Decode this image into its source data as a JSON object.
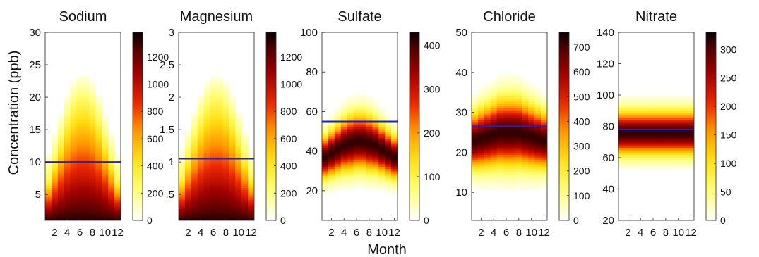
{
  "figure": {
    "ylabel": "Concentration (ppb)",
    "xlabel": "Month"
  },
  "chart_data": [
    {
      "type": "heatmap",
      "title": "Sodium",
      "x": [
        1,
        2,
        3,
        4,
        5,
        6,
        7,
        8,
        9,
        10,
        11,
        12
      ],
      "xticks": [
        2,
        4,
        6,
        8,
        10,
        12
      ],
      "ylim": [
        1,
        30
      ],
      "yticks": [
        5,
        10,
        15,
        20,
        25,
        30
      ],
      "ytick_labels": [
        "5",
        "10",
        "15",
        "20",
        "25",
        "30"
      ],
      "mean_line": 10,
      "density_model": "upper_bound_band",
      "band_bottom": 1,
      "band_top_by_month": [
        7,
        10,
        13,
        16,
        18,
        19,
        19,
        18,
        16,
        13,
        10,
        7
      ],
      "colorbar_max": 1380,
      "colorbar_ticks": [
        0,
        200,
        400,
        600,
        800,
        1000,
        1200
      ],
      "line_color": "#1f1fd6"
    },
    {
      "type": "heatmap",
      "title": "Magnesium",
      "x": [
        1,
        2,
        3,
        4,
        5,
        6,
        7,
        8,
        9,
        10,
        11,
        12
      ],
      "xticks": [
        2,
        4,
        6,
        8,
        10,
        12
      ],
      "ylim": [
        0.1,
        3
      ],
      "yticks": [
        0.5,
        1,
        1.5,
        2,
        2.5,
        3
      ],
      "ytick_labels": [
        ".5",
        "1",
        "1.5",
        "2",
        "2.5",
        "3"
      ],
      "mean_line": 1.05,
      "density_model": "upper_bound_band",
      "band_bottom": 0.1,
      "band_top_by_month": [
        0.75,
        1.05,
        1.35,
        1.6,
        1.8,
        1.9,
        1.9,
        1.8,
        1.6,
        1.35,
        1.05,
        0.75
      ],
      "colorbar_max": 1380,
      "colorbar_ticks": [
        0,
        200,
        400,
        600,
        800,
        1000,
        1200
      ],
      "line_color": "#1f1fd6"
    },
    {
      "type": "heatmap",
      "title": "Sulfate",
      "x": [
        1,
        2,
        3,
        4,
        5,
        6,
        7,
        8,
        9,
        10,
        11,
        12
      ],
      "xticks": [
        2,
        4,
        6,
        8,
        10,
        12
      ],
      "ylim": [
        5,
        100
      ],
      "yticks": [
        20,
        40,
        60,
        80,
        100
      ],
      "ytick_labels": [
        "20",
        "40",
        "60",
        "80",
        "100"
      ],
      "mean_line": 55,
      "density_model": "gaussian_band",
      "center_by_month": [
        37,
        39,
        41,
        43,
        44,
        45,
        45,
        44,
        43,
        41,
        39,
        37
      ],
      "spread_by_month": [
        7,
        7.5,
        8,
        8.5,
        9,
        9,
        9,
        9,
        8.5,
        8,
        7.5,
        7
      ],
      "colorbar_max": 430,
      "colorbar_ticks": [
        0,
        100,
        200,
        300,
        400
      ],
      "line_color": "#1f1fd6"
    },
    {
      "type": "heatmap",
      "title": "Chloride",
      "x": [
        1,
        2,
        3,
        4,
        5,
        6,
        7,
        8,
        9,
        10,
        11,
        12
      ],
      "xticks": [
        2,
        4,
        6,
        8,
        10,
        12
      ],
      "ylim": [
        3,
        50
      ],
      "yticks": [
        10,
        20,
        30,
        40,
        50
      ],
      "ytick_labels": [
        "10",
        "20",
        "30",
        "40",
        "50"
      ],
      "mean_line": 26.5,
      "density_model": "gaussian_band",
      "center_by_month": [
        23,
        23.5,
        24,
        24.5,
        25,
        25,
        25,
        25,
        24.5,
        24,
        23.5,
        23
      ],
      "spread_by_month": [
        4.5,
        4.8,
        5,
        5.2,
        5.4,
        5.5,
        5.5,
        5.4,
        5.2,
        5,
        4.8,
        4.5
      ],
      "colorbar_max": 760,
      "colorbar_ticks": [
        0,
        100,
        200,
        300,
        400,
        500,
        600,
        700
      ],
      "line_color": "#1f1fd6"
    },
    {
      "type": "heatmap",
      "title": "Nitrate",
      "x": [
        1,
        2,
        3,
        4,
        5,
        6,
        7,
        8,
        9,
        10,
        11,
        12
      ],
      "xticks": [
        2,
        4,
        6,
        8,
        10,
        12
      ],
      "ylim": [
        20,
        140
      ],
      "yticks": [
        20,
        40,
        60,
        80,
        100,
        120,
        140
      ],
      "ytick_labels": [
        "20",
        "40",
        "60",
        "80",
        "100",
        "120",
        "140"
      ],
      "mean_line": 78,
      "density_model": "gaussian_band",
      "center_by_month": [
        76,
        76,
        76,
        76,
        76,
        76,
        76,
        76,
        76,
        76,
        76,
        76
      ],
      "spread_by_month": [
        9,
        9,
        9,
        9,
        9,
        9,
        9,
        9,
        9,
        9,
        9,
        9
      ],
      "colorbar_max": 330,
      "colorbar_ticks": [
        0,
        50,
        100,
        150,
        200,
        250,
        300
      ],
      "colorbar_tick_labels": [
        "0",
        "50",
        "100",
        "150",
        "200",
        "250",
        "300"
      ],
      "line_color": "#1f1fd6"
    }
  ]
}
